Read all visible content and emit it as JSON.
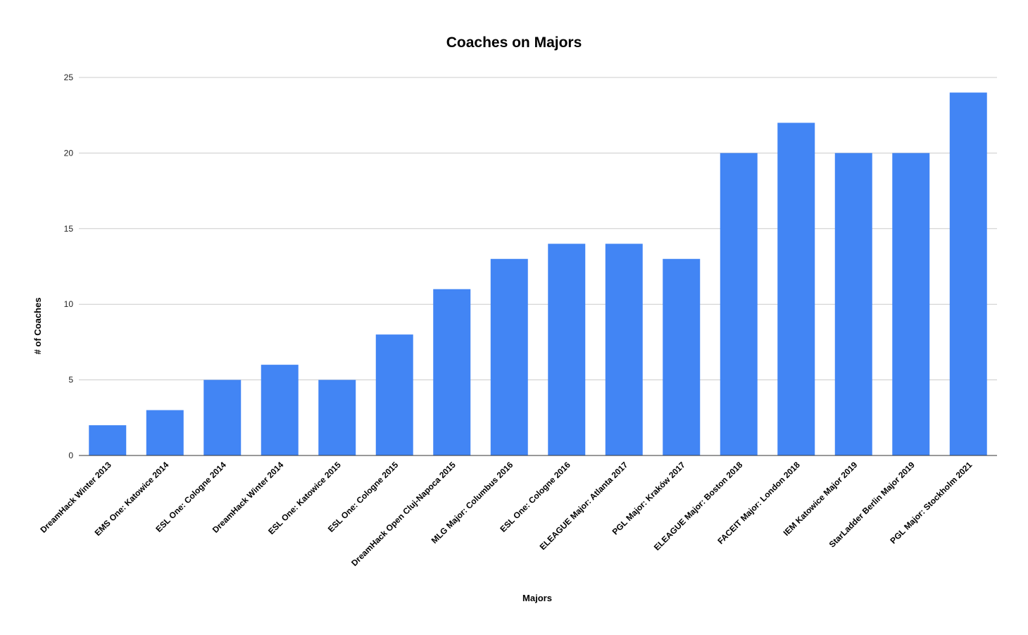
{
  "chart_data": {
    "type": "bar",
    "title": "Coaches on Majors",
    "xlabel": "Majors",
    "ylabel": "# of Coaches",
    "categories": [
      "DreamHack Winter 2013",
      "EMS One: Katowice 2014",
      "ESL One: Cologne 2014",
      "DreamHack Winter 2014",
      "ESL One: Katowice 2015",
      "ESL One: Cologne 2015",
      "DreamHack Open Cluj-Napoca 2015",
      "MLG Major: Columbus 2016",
      "ESL One: Cologne 2016",
      "ELEAGUE Major: Atlanta 2017",
      "PGL Major: Kraków 2017",
      "ELEAGUE Major: Boston 2018",
      "FACEIT Major: London 2018",
      "IEM Katowice Major 2019",
      "StarLadder Berlin Major 2019",
      "PGL Major: Stockholm 2021"
    ],
    "values": [
      2,
      3,
      5,
      6,
      5,
      8,
      11,
      13,
      14,
      14,
      13,
      20,
      22,
      20,
      20,
      24
    ],
    "ylim": [
      0,
      25
    ],
    "yticks": [
      0,
      5,
      10,
      15,
      20,
      25
    ],
    "grid": true,
    "legend": "none",
    "bar_color": "#4285f4"
  }
}
